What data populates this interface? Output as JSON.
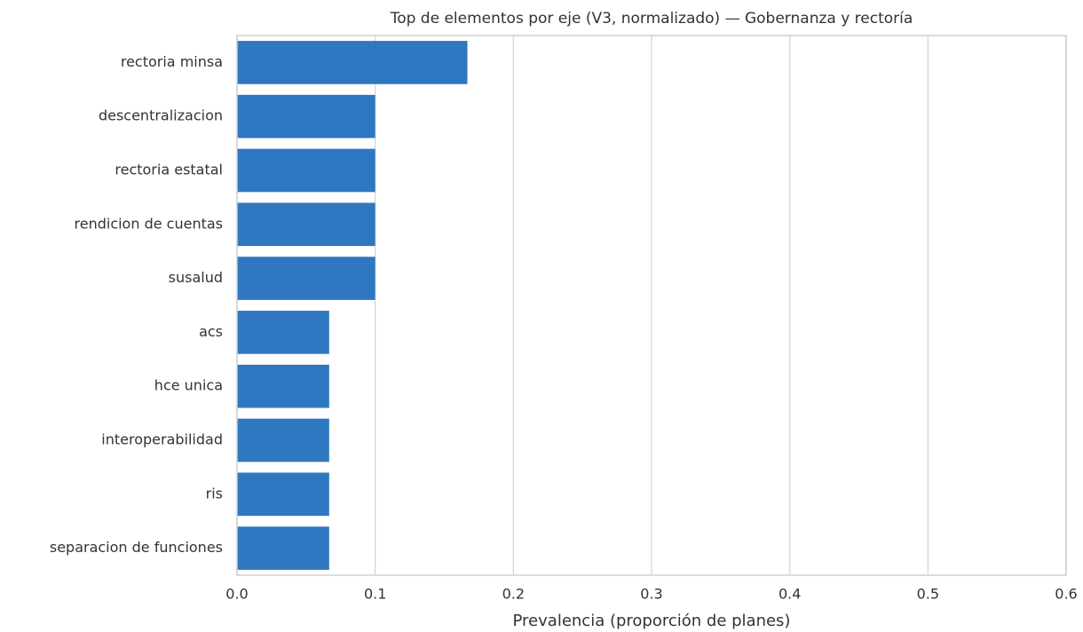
{
  "chart_data": {
    "type": "bar",
    "orientation": "horizontal",
    "title": "Top de elementos por eje (V3, normalizado) — Gobernanza y rectoría",
    "x_label": "Prevalencia (proporción de planes)",
    "categories": [
      "rectoria minsa",
      "descentralizacion",
      "rectoria estatal",
      "rendicion de cuentas",
      "susalud",
      "acs",
      "hce unica",
      "interoperabilidad",
      "ris",
      "separacion de funciones"
    ],
    "values": [
      0.1667,
      0.1,
      0.1,
      0.1,
      0.1,
      0.0667,
      0.0667,
      0.0667,
      0.0667,
      0.0667
    ],
    "color": "#2f77c0",
    "xlim": [
      0,
      0.6
    ],
    "xticks": [
      {
        "value": 0,
        "label": "0.0"
      },
      0.1,
      0.2,
      0.3,
      0.4,
      0.5,
      0.6
    ],
    "grid": true
  }
}
